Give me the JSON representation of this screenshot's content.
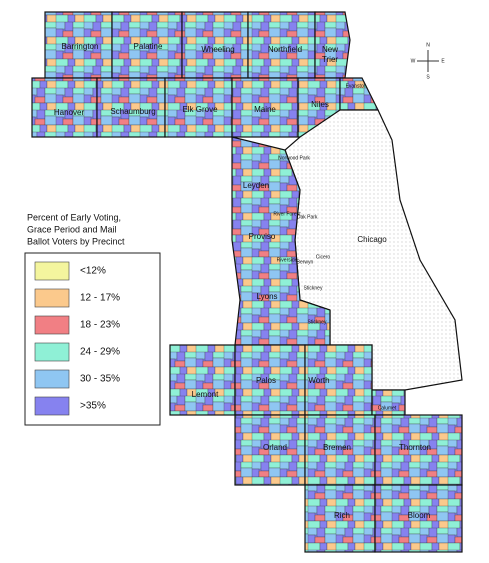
{
  "map": {
    "compass": {
      "north": "N",
      "south": "S",
      "east": "E",
      "west": "W"
    },
    "townships": {
      "barrington": "Barrington",
      "palatine": "Palatine",
      "wheeling": "Wheeling",
      "northfield": "Northfield",
      "new_trier": [
        "New",
        "Trier"
      ],
      "evanston": "Evanston",
      "hanover": "Hanover",
      "schaumburg": "Schaumburg",
      "elk_grove": "Elk Grove",
      "maine": "Maine",
      "niles": "Niles",
      "norwood_park": "Norwood Park",
      "leyden": "Leyden",
      "proviso": "Proviso",
      "river_forest": "River Forest",
      "oak_park": "Oak Park",
      "chicago": "Chicago",
      "riverside": "Riverside",
      "berwyn": "Berwyn",
      "cicero": "Cicero",
      "stickney_north": "Stickney",
      "lyons": "Lyons",
      "stickney_south": "Stickney",
      "lemont": "Lemont",
      "palos": "Palos",
      "worth": "Worth",
      "calumet": "Calumet",
      "orland": "Orland",
      "bremen": "Bremen",
      "thornton": "Thornton",
      "rich": "Rich",
      "bloom": "Bloom"
    },
    "legend": {
      "title": [
        "Percent of Early Voting,",
        "Grace Period and Mail",
        "Ballot Voters by Precinct"
      ],
      "items": [
        {
          "label": "<12%",
          "color": "#f4f59e"
        },
        {
          "label": "12 - 17%",
          "color": "#fbc98c"
        },
        {
          "label": "18 - 23%",
          "color": "#f17f84"
        },
        {
          "label": "24 - 29%",
          "color": "#8ff0d6"
        },
        {
          "label": "30 - 35%",
          "color": "#8fc6f2"
        },
        {
          "label": ">35%",
          "color": "#8682ef"
        }
      ]
    }
  }
}
